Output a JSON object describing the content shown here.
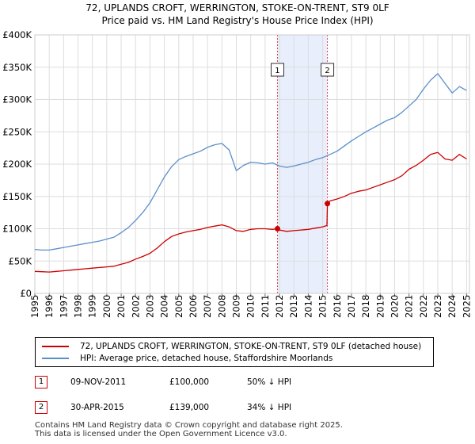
{
  "title_line1": "72, UPLANDS CROFT, WERRINGTON, STOKE-ON-TRENT, ST9 0LF",
  "title_line2": "Price paid vs. HM Land Registry's House Price Index (HPI)",
  "colors": {
    "property": "#cc0000",
    "hpi": "#5b8fc9",
    "shade": "#e8eefb",
    "grid": "#dddddd"
  },
  "chart_data": {
    "type": "line",
    "ylim": [
      0,
      400000
    ],
    "xlim": [
      1995,
      2025.2
    ],
    "yticks": [
      {
        "value": 0,
        "label": "£0"
      },
      {
        "value": 50000,
        "label": "£50K"
      },
      {
        "value": 100000,
        "label": "£100K"
      },
      {
        "value": 150000,
        "label": "£150K"
      },
      {
        "value": 200000,
        "label": "£200K"
      },
      {
        "value": 250000,
        "label": "£250K"
      },
      {
        "value": 300000,
        "label": "£300K"
      },
      {
        "value": 350000,
        "label": "£350K"
      },
      {
        "value": 400000,
        "label": "£400K"
      }
    ],
    "xticks": [
      "1995",
      "1996",
      "1997",
      "1998",
      "1999",
      "2000",
      "2001",
      "2002",
      "2003",
      "2004",
      "2005",
      "2006",
      "2007",
      "2008",
      "2009",
      "2010",
      "2011",
      "2012",
      "2013",
      "2014",
      "2015",
      "2016",
      "2017",
      "2018",
      "2019",
      "2020",
      "2021",
      "2022",
      "2023",
      "2024",
      "2025"
    ],
    "shaded_region": [
      2011.86,
      2015.33
    ],
    "series": [
      {
        "name": "72, UPLANDS CROFT, WERRINGTON, STOKE-ON-TRENT, ST9 0LF (detached house)",
        "color": "#cc0000",
        "x": [
          1995,
          1995.5,
          1996,
          1996.5,
          1997,
          1997.5,
          1998,
          1998.5,
          1999,
          1999.5,
          2000,
          2000.5,
          2001,
          2001.5,
          2002,
          2002.5,
          2003,
          2003.5,
          2004,
          2004.5,
          2005,
          2005.5,
          2006,
          2006.5,
          2007,
          2007.5,
          2008,
          2008.5,
          2009,
          2009.5,
          2010,
          2010.5,
          2011,
          2011.5,
          2011.86,
          2012,
          2012.5,
          2013,
          2013.5,
          2014,
          2014.5,
          2015,
          2015.3,
          2015.33,
          2015.5,
          2016,
          2016.5,
          2017,
          2017.5,
          2018,
          2018.5,
          2019,
          2019.5,
          2020,
          2020.5,
          2021,
          2021.5,
          2022,
          2022.5,
          2023,
          2023.5,
          2024,
          2024.5,
          2025
        ],
        "values": [
          34000,
          33500,
          33000,
          34000,
          35000,
          36000,
          37000,
          38000,
          39000,
          40000,
          41000,
          42000,
          45000,
          48000,
          53000,
          57000,
          62000,
          70000,
          80000,
          88000,
          92000,
          95000,
          97000,
          99000,
          102000,
          104000,
          106000,
          103000,
          97000,
          96000,
          99000,
          100000,
          100000,
          99000,
          100000,
          98000,
          96000,
          97000,
          98000,
          99000,
          101000,
          103000,
          105000,
          139000,
          143000,
          146000,
          150000,
          155000,
          158000,
          160000,
          164000,
          168000,
          172000,
          176000,
          182000,
          192000,
          198000,
          206000,
          215000,
          218000,
          208000,
          206000,
          215000,
          208000
        ]
      },
      {
        "name": "HPI: Average price, detached house, Staffordshire Moorlands",
        "color": "#5b8fc9",
        "x": [
          1995,
          1995.5,
          1996,
          1996.5,
          1997,
          1997.5,
          1998,
          1998.5,
          1999,
          1999.5,
          2000,
          2000.5,
          2001,
          2001.5,
          2002,
          2002.5,
          2003,
          2003.5,
          2004,
          2004.5,
          2005,
          2005.5,
          2006,
          2006.5,
          2007,
          2007.5,
          2008,
          2008.5,
          2009,
          2009.5,
          2010,
          2010.5,
          2011,
          2011.5,
          2012,
          2012.5,
          2013,
          2013.5,
          2014,
          2014.5,
          2015,
          2015.5,
          2016,
          2016.5,
          2017,
          2017.5,
          2018,
          2018.5,
          2019,
          2019.5,
          2020,
          2020.5,
          2021,
          2021.5,
          2022,
          2022.5,
          2023,
          2023.5,
          2024,
          2024.5,
          2025
        ],
        "values": [
          68000,
          67000,
          67000,
          69000,
          71000,
          73000,
          75000,
          77000,
          79000,
          81000,
          84000,
          87000,
          94000,
          102000,
          113000,
          125000,
          140000,
          160000,
          180000,
          196000,
          207000,
          212000,
          216000,
          220000,
          226000,
          230000,
          232000,
          222000,
          190000,
          198000,
          203000,
          202000,
          200000,
          202000,
          197000,
          195000,
          197000,
          200000,
          203000,
          207000,
          210000,
          215000,
          220000,
          228000,
          236000,
          243000,
          250000,
          256000,
          262000,
          268000,
          272000,
          280000,
          290000,
          300000,
          316000,
          330000,
          340000,
          325000,
          310000,
          320000,
          314000
        ]
      }
    ],
    "markers": [
      {
        "label": "1",
        "x": 2011.86,
        "value": 100000
      },
      {
        "label": "2",
        "x": 2015.33,
        "value": 139000
      }
    ]
  },
  "legend": {
    "property": "72, UPLANDS CROFT, WERRINGTON, STOKE-ON-TRENT, ST9 0LF (detached house)",
    "hpi": "HPI: Average price, detached house, Staffordshire Moorlands"
  },
  "sales": [
    {
      "num": "1",
      "date": "09-NOV-2011",
      "price": "£100,000",
      "hpi": "50% ↓ HPI"
    },
    {
      "num": "2",
      "date": "30-APR-2015",
      "price": "£139,000",
      "hpi": "34% ↓ HPI"
    }
  ],
  "footer_line1": "Contains HM Land Registry data © Crown copyright and database right 2025.",
  "footer_line2": "This data is licensed under the Open Government Licence v3.0."
}
